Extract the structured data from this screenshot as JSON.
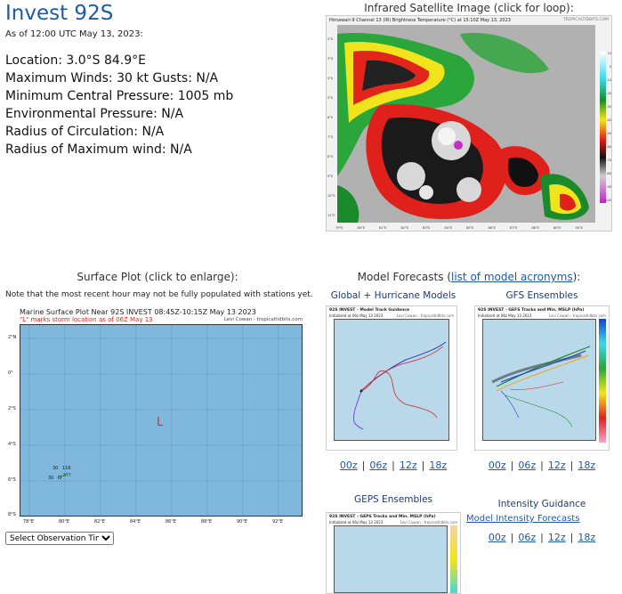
{
  "storm": {
    "title": "Invest 92S",
    "as_of": "As of 12:00 UTC May 13, 2023:",
    "stats": [
      "Location: 3.0°S 84.9°E",
      "Maximum Winds: 30 kt  Gusts: N/A",
      "Minimum Central Pressure: 1005 mb",
      "Environmental Pressure: N/A",
      "Radius of Circulation: N/A",
      "Radius of Maximum wind: N/A"
    ]
  },
  "infrared": {
    "heading": "Infrared Satellite Image (click for loop):",
    "caption": "Himawari-9 Channel 13 (IR) Brightness Temperature (°C) at 15:10Z May 13, 2023",
    "credit": "TROPICALTIDBITS.COM",
    "lat_labels": [
      "2°S",
      "3°S",
      "4°S",
      "5°S",
      "6°S",
      "7°S",
      "8°S",
      "9°S",
      "10°S",
      "11°S"
    ],
    "lon_labels": [
      "79°E",
      "80°E",
      "81°E",
      "82°E",
      "83°E",
      "84°E",
      "85°E",
      "86°E",
      "87°E",
      "88°E",
      "89°E",
      "90°E"
    ],
    "scale_labels": [
      "10",
      "0",
      "-10",
      "-20",
      "-30",
      "-40",
      "-50",
      "-60",
      "-70",
      "-80",
      "-90",
      "-100"
    ]
  },
  "surface": {
    "heading": "Surface Plot (click to enlarge):",
    "note": "Note that the most recent hour may not be fully populated with stations yet.",
    "plot_title": "Marine Surface Plot Near 92S INVEST 08:45Z-10:15Z May 13 2023",
    "plot_subtitle": "\"L\" marks storm location as of 06Z May 13",
    "credit": "Levi Cowan - tropicaltidbits.com",
    "storm_marker": "L",
    "lat_labels": [
      "2°N",
      "0°",
      "2°S",
      "4°S",
      "6°S",
      "8°S"
    ],
    "lon_labels": [
      "78°E",
      "80°E",
      "82°E",
      "84°E",
      "86°E",
      "88°E",
      "90°E",
      "92°E"
    ],
    "station": {
      "temp": "30",
      "pressure": "116",
      "dew": "30",
      "extra": "377"
    },
    "select_label": "Select Observation Time..."
  },
  "models": {
    "heading_prefix": "Model Forecasts (",
    "heading_link": "list of model acronyms",
    "heading_suffix": "):",
    "global": {
      "title": "Global + Hurricane Models",
      "panel_title": "92S INVEST - Model Track Guidance",
      "panel_sub": "Initialized at 06z May 13 2023",
      "panel_credit": "Levi Cowan - tropicaltidbits.com",
      "links": [
        "00z",
        "06z",
        "12z",
        "18z"
      ]
    },
    "gfs": {
      "title": "GFS Ensembles",
      "panel_title": "92S INVEST - GEFS Tracks and Min. MSLP (hPa)",
      "panel_sub": "Initialized at 06z May 13 2023",
      "panel_credit": "Levi Cowan - tropicaltidbits.com",
      "links": [
        "00z",
        "06z",
        "12z",
        "18z"
      ]
    },
    "geps": {
      "title": "GEPS Ensembles",
      "panel_title": "92S INVEST - GEPS Tracks and Min. MSLP (hPa)",
      "panel_sub": "Initialized at 06z May 13 2023",
      "panel_credit": "Levi Cowan - tropicaltidbits.com"
    },
    "intensity": {
      "title": "Intensity Guidance",
      "link": "Model Intensity Forecasts",
      "links": [
        "00z",
        "06z",
        "12z",
        "18z"
      ]
    }
  },
  "colors": {
    "title": "#1e5aa8",
    "ocean": "#7fb7dd",
    "storm_marker": "#e0281e"
  }
}
